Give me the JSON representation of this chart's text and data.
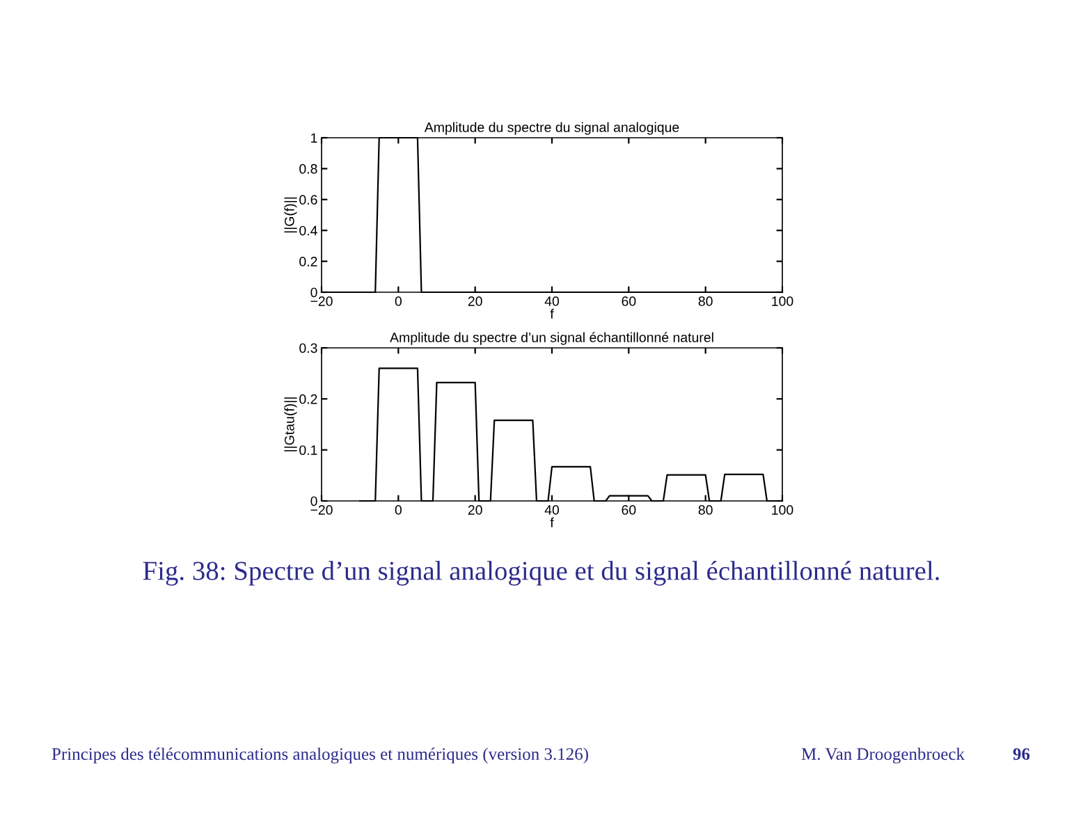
{
  "chart_data": [
    {
      "type": "line",
      "title": "Amplitude du spectre du signal analogique",
      "xlabel": "f",
      "ylabel": "||G(f)||",
      "series": [
        {
          "color": "#000000",
          "x": [
            -20,
            -6,
            -5,
            5,
            6,
            100
          ],
          "values": [
            0,
            0,
            1,
            1,
            0,
            0
          ]
        }
      ],
      "xlim": [
        -20,
        100
      ],
      "xticks": [
        {
          "value": -20,
          "label": "−20"
        },
        0,
        20,
        40,
        60,
        80,
        100
      ],
      "ylim": [
        0,
        1
      ],
      "yticks": [
        0,
        0.2,
        0.4,
        0.6,
        0.8,
        1
      ],
      "grid": false,
      "legend": false,
      "marker": "none",
      "line_style": "solid"
    },
    {
      "type": "line",
      "title": "Amplitude du spectre d’un signal échantillonné naturel",
      "xlabel": "f",
      "ylabel": "||Gtau(f)||",
      "series": [
        {
          "color": "#000000",
          "x": [
            -10,
            -6,
            -5,
            5,
            6,
            9,
            10,
            20,
            21,
            24,
            25,
            35,
            36,
            39,
            40,
            50,
            51,
            54,
            55,
            65,
            66,
            69,
            70,
            80,
            81,
            84,
            85,
            95,
            96,
            100
          ],
          "values": [
            0,
            0,
            0.26,
            0.26,
            0,
            0,
            0.232,
            0.232,
            0,
            0,
            0.158,
            0.158,
            0,
            0,
            0.067,
            0.067,
            0,
            0,
            0.01,
            0.01,
            0,
            0,
            0.051,
            0.051,
            0,
            0,
            0.052,
            0.052,
            0,
            0
          ]
        }
      ],
      "xlim": [
        -20,
        100
      ],
      "xticks": [
        {
          "value": -20,
          "label": "−20"
        },
        0,
        20,
        40,
        60,
        80,
        100
      ],
      "ylim": [
        0,
        0.3
      ],
      "yticks": [
        0,
        0.1,
        0.2,
        0.3
      ],
      "grid": false,
      "legend": false,
      "marker": "none",
      "line_style": "solid",
      "annotations": [
        "Fig. 38: Spectre d’un signal analogique et du signal échantillonné naturel.",
        "Principes des télécommunications analogiques et numériques (version 3.126)",
        "M. Van Droogenbroeck",
        "96"
      ]
    }
  ]
}
